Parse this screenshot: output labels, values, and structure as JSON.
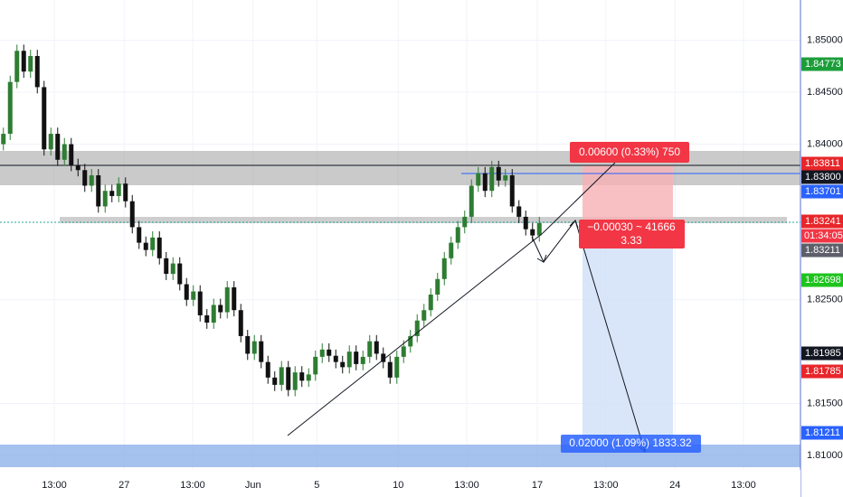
{
  "chart_data": {
    "type": "candlestick",
    "up_color": "#2e7d32",
    "down_color": "#111111",
    "open": [
      1.84,
      1.841,
      1.846,
      1.849,
      1.847,
      1.8485,
      1.8455,
      1.8395,
      1.841,
      1.8385,
      1.84,
      1.838,
      1.8375,
      1.836,
      1.837,
      1.834,
      1.8355,
      1.835,
      1.8362,
      1.8345,
      1.832,
      1.8305,
      1.8298,
      1.831,
      1.829,
      1.8275,
      1.8285,
      1.8265,
      1.825,
      1.8258,
      1.8235,
      1.8228,
      1.8245,
      1.8238,
      1.8262,
      1.824,
      1.8215,
      1.8198,
      1.821,
      1.819,
      1.8175,
      1.8168,
      1.8185,
      1.8163,
      1.818,
      1.8172,
      1.8178,
      1.8195,
      1.8202,
      1.8196,
      1.819,
      1.8185,
      1.82,
      1.8188,
      1.8195,
      1.821,
      1.8198,
      1.819,
      1.8175,
      1.8195,
      1.8205,
      1.8215,
      1.823,
      1.824,
      1.8255,
      1.827,
      1.829,
      1.8305,
      1.832,
      1.833,
      1.836,
      1.8372,
      1.8355,
      1.8378,
      1.8365,
      1.837,
      1.834,
      1.833,
      1.8318,
      1.8312
    ],
    "high": [
      1.8416,
      1.8466,
      1.8496,
      1.8496,
      1.8491,
      1.8491,
      1.8461,
      1.8416,
      1.8416,
      1.8406,
      1.8406,
      1.8386,
      1.8381,
      1.8376,
      1.8376,
      1.8361,
      1.8361,
      1.8368,
      1.8368,
      1.8351,
      1.8326,
      1.8311,
      1.8316,
      1.8316,
      1.8296,
      1.8291,
      1.8291,
      1.8271,
      1.8264,
      1.8264,
      1.8241,
      1.8251,
      1.8251,
      1.8268,
      1.8268,
      1.8246,
      1.8221,
      1.8216,
      1.8216,
      1.8196,
      1.8181,
      1.8191,
      1.8191,
      1.8186,
      1.8186,
      1.8184,
      1.8201,
      1.8208,
      1.8208,
      1.8202,
      1.8196,
      1.8206,
      1.8206,
      1.8201,
      1.8216,
      1.8216,
      1.8204,
      1.8196,
      1.8201,
      1.8211,
      1.8221,
      1.8236,
      1.8246,
      1.8261,
      1.8276,
      1.8296,
      1.8311,
      1.8326,
      1.8336,
      1.8366,
      1.8378,
      1.8378,
      1.8384,
      1.8384,
      1.8376,
      1.8376,
      1.8346,
      1.8336,
      1.8324,
      1.833
    ],
    "low": [
      1.8394,
      1.8404,
      1.8454,
      1.8464,
      1.8464,
      1.8449,
      1.8389,
      1.8389,
      1.8379,
      1.8379,
      1.8374,
      1.8369,
      1.8354,
      1.8354,
      1.8334,
      1.8334,
      1.8344,
      1.8344,
      1.8339,
      1.8314,
      1.8299,
      1.8292,
      1.8292,
      1.8284,
      1.8269,
      1.8269,
      1.8259,
      1.8244,
      1.8244,
      1.8229,
      1.8222,
      1.8222,
      1.8232,
      1.8232,
      1.8234,
      1.8209,
      1.8192,
      1.8192,
      1.8184,
      1.8169,
      1.8162,
      1.8162,
      1.8157,
      1.8157,
      1.8166,
      1.8166,
      1.8172,
      1.8189,
      1.819,
      1.8184,
      1.8179,
      1.8179,
      1.8182,
      1.8182,
      1.8189,
      1.8192,
      1.8184,
      1.8169,
      1.8169,
      1.8189,
      1.8199,
      1.8209,
      1.8224,
      1.8234,
      1.8249,
      1.8264,
      1.8284,
      1.8299,
      1.8314,
      1.8324,
      1.8354,
      1.8349,
      1.8349,
      1.8359,
      1.8359,
      1.8334,
      1.8324,
      1.8312,
      1.8306,
      1.8306
    ],
    "close": [
      1.841,
      1.846,
      1.849,
      1.847,
      1.8485,
      1.8455,
      1.8395,
      1.841,
      1.8385,
      1.84,
      1.838,
      1.8375,
      1.836,
      1.837,
      1.834,
      1.8355,
      1.835,
      1.8362,
      1.8345,
      1.832,
      1.8305,
      1.8298,
      1.831,
      1.829,
      1.8275,
      1.8285,
      1.8265,
      1.825,
      1.8258,
      1.8235,
      1.8228,
      1.8245,
      1.8238,
      1.8262,
      1.824,
      1.8215,
      1.8198,
      1.821,
      1.819,
      1.8175,
      1.8168,
      1.8185,
      1.8163,
      1.818,
      1.8172,
      1.8178,
      1.8195,
      1.8202,
      1.8196,
      1.819,
      1.8185,
      1.82,
      1.8188,
      1.8195,
      1.821,
      1.8198,
      1.819,
      1.8175,
      1.8195,
      1.8205,
      1.8215,
      1.823,
      1.824,
      1.8255,
      1.827,
      1.829,
      1.8305,
      1.832,
      1.833,
      1.836,
      1.8372,
      1.8355,
      1.8378,
      1.8365,
      1.837,
      1.834,
      1.833,
      1.8318,
      1.8312,
      1.8324
    ],
    "xlim": [
      -0.5,
      117.5
    ],
    "ylim": [
      1.8086,
      1.8539
    ],
    "xticks": [
      {
        "value": 7.5,
        "label": "13:00"
      },
      {
        "value": 17.8,
        "label": "27"
      },
      {
        "value": 27.9,
        "label": "13:00"
      },
      {
        "value": 36.8,
        "label": "Jun"
      },
      {
        "value": 46.2,
        "label": "5"
      },
      {
        "value": 58.2,
        "label": "10"
      },
      {
        "value": 68.3,
        "label": "13:00"
      },
      {
        "value": 78.7,
        "label": "17"
      },
      {
        "value": 88.8,
        "label": "13:00"
      },
      {
        "value": 99,
        "label": "24"
      },
      {
        "value": 109.1,
        "label": "13:00"
      }
    ],
    "yticks": [
      {
        "value": 1.85,
        "label": "1.85000"
      },
      {
        "value": 1.845,
        "label": "1.84500"
      },
      {
        "value": 1.84,
        "label": "1.84000"
      },
      {
        "value": 1.825,
        "label": "1.82500"
      },
      {
        "value": 1.815,
        "label": "1.81500"
      },
      {
        "value": 1.81,
        "label": "1.81000"
      }
    ],
    "price_labels": [
      {
        "value": 1.84773,
        "label": "1.84773",
        "color": "#1b9e3a"
      },
      {
        "value": 1.83811,
        "label": "1.83811",
        "color": "#e8262a"
      },
      {
        "value": 1.838,
        "label": "1.83800",
        "color": "#131722"
      },
      {
        "value": 1.83701,
        "label": "1.83701",
        "color": "#2962ff"
      },
      {
        "value": 1.83241,
        "label": "1.83241",
        "color": "#e8262a"
      },
      {
        "value": 1.83211,
        "label": "1.83211",
        "color": "#5d606b"
      },
      {
        "value": 1.82698,
        "label": "1.82698",
        "color": "#1ec31e"
      },
      {
        "value": 1.81985,
        "label": "1.81985",
        "color": "#131722"
      },
      {
        "value": 1.81785,
        "label": "1.81785",
        "color": "#e8262a"
      },
      {
        "value": 1.81211,
        "label": "1.81211",
        "color": "#2962ff"
      }
    ],
    "countdown": "01:34:05",
    "risk_label": "0.00600 (0.33%) 750",
    "entry_label": "−0.00030 ~ 41666",
    "ratio_label": "3.33",
    "reward_label": "0.02000 (1.09%) 1833.32"
  }
}
